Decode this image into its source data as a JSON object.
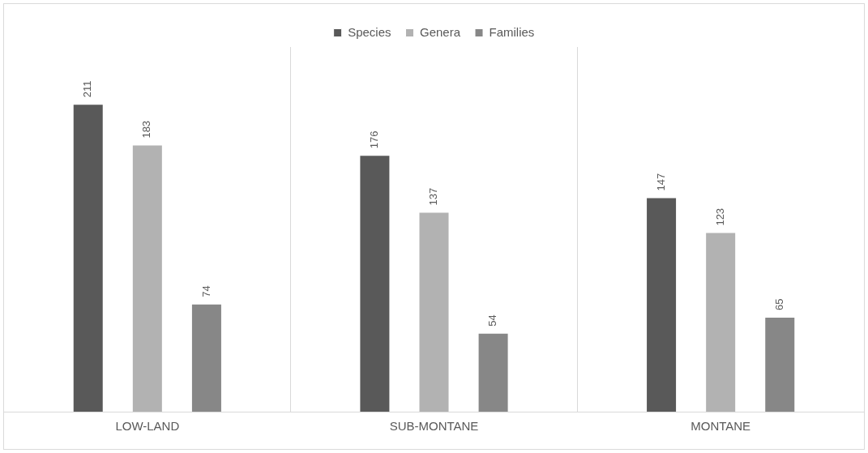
{
  "chart_data": {
    "type": "bar",
    "categories": [
      "LOW-LAND",
      "SUB-MONTANE",
      "MONTANE"
    ],
    "series": [
      {
        "name": "Species",
        "color": "#595959",
        "values": [
          211,
          176,
          147
        ]
      },
      {
        "name": "Genera",
        "color": "#b2b2b2",
        "values": [
          183,
          137,
          123
        ]
      },
      {
        "name": "Families",
        "color": "#878787",
        "values": [
          74,
          54,
          65
        ]
      }
    ],
    "data_labels": true,
    "grid": "x",
    "legend": "top"
  }
}
